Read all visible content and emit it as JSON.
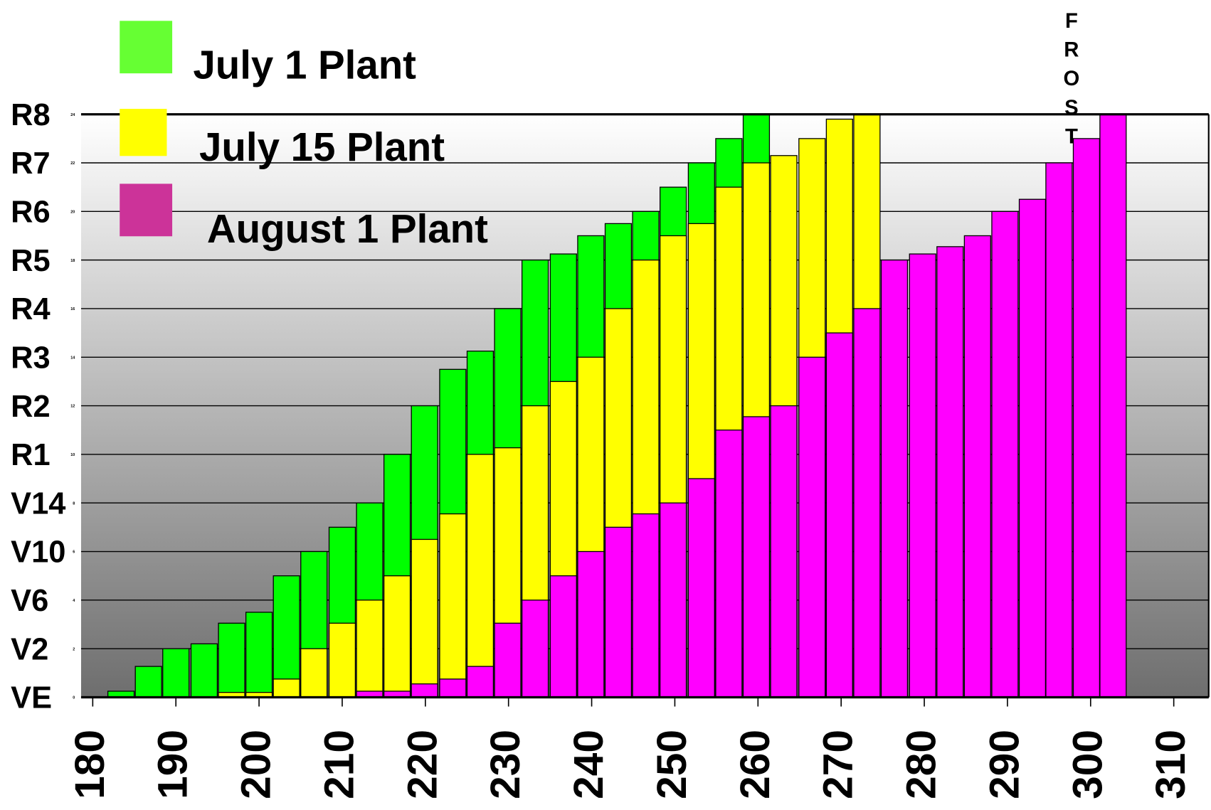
{
  "chart_data": {
    "type": "overlapping-bar",
    "xlim": [
      178.6,
      314.2
    ],
    "xticks": [
      180,
      190,
      200,
      210,
      220,
      230,
      240,
      250,
      260,
      270,
      280,
      290,
      300,
      310
    ],
    "ylim": [
      0,
      24
    ],
    "yticks": [
      0,
      2,
      4,
      6,
      8,
      10,
      12,
      14,
      16,
      18,
      20,
      22,
      24
    ],
    "stage_labels": [
      "VE",
      "V2",
      "V6",
      "V10",
      "V14",
      "R1",
      "R2",
      "R3",
      "R4",
      "R5",
      "R6",
      "R7",
      "R8"
    ],
    "grid": true,
    "annotation": "FROST",
    "annotation_x": 297.7,
    "x": [
      183.4,
      186.7,
      190.0,
      193.4,
      196.7,
      200.0,
      203.3,
      206.6,
      210.0,
      213.3,
      216.6,
      219.9,
      223.3,
      226.6,
      229.9,
      233.2,
      236.6,
      239.9,
      243.2,
      246.5,
      249.8,
      253.2,
      256.5,
      259.8,
      263.1,
      266.5,
      269.8,
      273.1,
      276.4,
      279.8,
      283.1,
      286.4,
      289.7,
      293.0,
      296.2,
      299.5,
      302.7
    ],
    "series": [
      {
        "name": "July 1 Plant",
        "color": "#00ff00",
        "legend_color": "#66ff33",
        "values": [
          0.25,
          1.27,
          2.0,
          2.2,
          3.05,
          3.5,
          5.0,
          6.0,
          7.0,
          8.0,
          10.0,
          12.0,
          13.5,
          14.25,
          16.0,
          18.0,
          18.25,
          19.0,
          19.5,
          20.0,
          21.0,
          22.0,
          23.0,
          24.0,
          null,
          null,
          null,
          null,
          null,
          null,
          null,
          null,
          null,
          null,
          null,
          null,
          null
        ]
      },
      {
        "name": "July 15 Plant",
        "color": "#ffff00",
        "legend_color": "#ffff00",
        "values": [
          null,
          null,
          null,
          null,
          0.2,
          0.2,
          0.75,
          2.0,
          3.05,
          4.0,
          5.0,
          6.5,
          7.55,
          10.0,
          10.27,
          12.0,
          13.0,
          14.0,
          16.0,
          18.0,
          19.0,
          19.5,
          21.0,
          22.0,
          22.3,
          23.0,
          23.8,
          24.0,
          null,
          null,
          null,
          null,
          null,
          null,
          null,
          null,
          null
        ]
      },
      {
        "name": "August 1 Plant",
        "color": "#ff00ff",
        "legend_color": "#cc3399",
        "values": [
          null,
          null,
          null,
          null,
          null,
          null,
          null,
          null,
          null,
          0.25,
          0.25,
          0.55,
          0.75,
          1.27,
          3.05,
          4.0,
          5.0,
          6.0,
          7.0,
          7.55,
          8.0,
          9.0,
          11.0,
          11.55,
          12.0,
          14.0,
          15.0,
          16.0,
          18.0,
          18.25,
          18.55,
          19.0,
          20.0,
          20.5,
          22.0,
          23.0,
          24.0
        ]
      }
    ]
  }
}
